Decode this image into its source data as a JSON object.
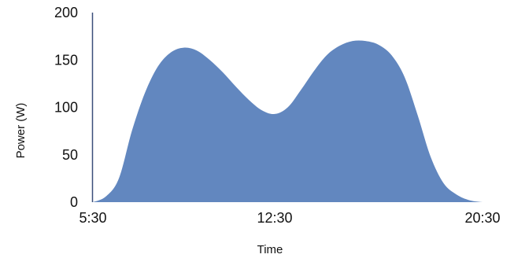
{
  "chart_data": {
    "type": "area",
    "title": "",
    "xlabel": "Time",
    "ylabel": "Power (W)",
    "x_ticks": [
      "5:30",
      "12:30",
      "20:30"
    ],
    "x_tick_hours": [
      5.5,
      12.5,
      20.5
    ],
    "xlim": [
      5.5,
      20.5
    ],
    "y_ticks": [
      0,
      50,
      100,
      150,
      200
    ],
    "ylim": [
      0,
      200
    ],
    "grid": false,
    "legend": "none",
    "series": [
      {
        "name": "",
        "color": "#6287BF",
        "x": [
          "5:30",
          "6:00",
          "6:30",
          "7:00",
          "7:30",
          "8:00",
          "8:30",
          "9:00",
          "9:30",
          "10:00",
          "10:30",
          "11:00",
          "11:30",
          "12:00",
          "12:30",
          "13:00",
          "13:30",
          "14:00",
          "14:30",
          "15:00",
          "15:30",
          "16:00",
          "16:30",
          "17:00",
          "17:30",
          "18:00",
          "18:30",
          "19:00",
          "19:30",
          "20:00",
          "20:30"
        ],
        "x_hours": [
          5.5,
          6.0,
          6.5,
          7.0,
          7.5,
          8.0,
          8.5,
          9.0,
          9.5,
          10.0,
          10.5,
          11.0,
          11.5,
          12.0,
          12.5,
          13.0,
          13.5,
          14.0,
          14.5,
          15.0,
          15.5,
          16.0,
          16.5,
          17.0,
          17.5,
          18.0,
          18.5,
          19.0,
          19.5,
          20.0,
          20.5
        ],
        "values": [
          0,
          6,
          25,
          75,
          115,
          143,
          158,
          163,
          160,
          150,
          137,
          122,
          108,
          97,
          93,
          100,
          118,
          138,
          155,
          165,
          170,
          170,
          166,
          155,
          132,
          92,
          48,
          20,
          8,
          2,
          0
        ]
      }
    ]
  }
}
